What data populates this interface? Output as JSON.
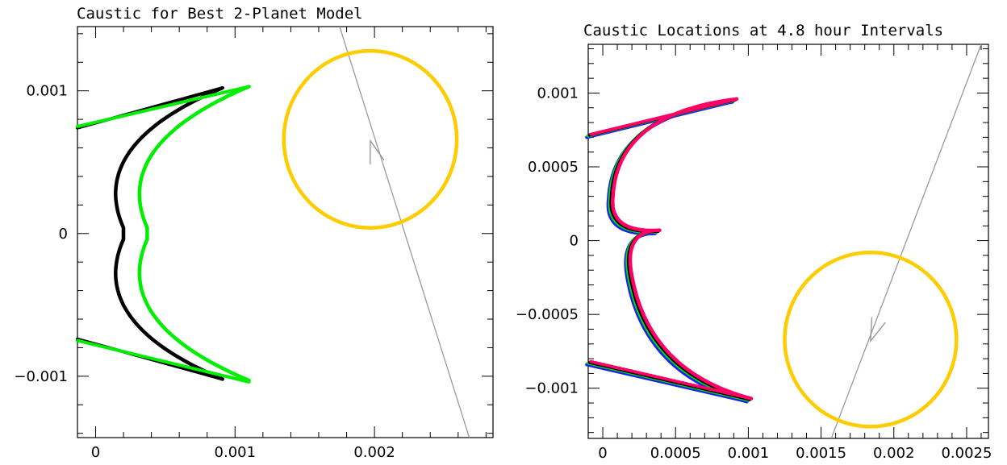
{
  "chart_data": [
    {
      "type": "line",
      "title": "Caustic for Best 2-Planet Model",
      "xlabel": "",
      "ylabel": "",
      "xlim": [
        -0.00013,
        0.00285
      ],
      "ylim": [
        -0.00143,
        0.00145
      ],
      "x_ticks": [
        0,
        0.001,
        0.002
      ],
      "x_tick_labels": [
        "0",
        "0.001",
        "0.002"
      ],
      "y_ticks": [
        -0.001,
        0,
        0.001
      ],
      "y_tick_labels": [
        "−0.001",
        "0",
        "0.001"
      ],
      "grid": false,
      "colors": {
        "caustic_black": "#000000",
        "caustic_green": "#00ee00",
        "source": "#ffcc00",
        "trajectory": "#999999"
      },
      "series": [
        {
          "color": "#000000",
          "cusps": {
            "top": [
              0.00091,
              0.00102
            ],
            "bottom": [
              0.00091,
              -0.00102
            ],
            "nub": [
              0.0002,
              0.0
            ],
            "left_top": [
              -0.00013,
              0.00074
            ],
            "left_bottom": [
              -0.00013,
              -0.00074
            ]
          },
          "arc_leftmost_x": 8e-05
        },
        {
          "color": "#00ee00",
          "cusps": {
            "top": [
              0.0011,
              0.00103
            ],
            "bottom": [
              0.0011,
              -0.00104
            ],
            "nub": [
              0.00037,
              0.0
            ],
            "left_top": [
              -0.00013,
              0.00075
            ],
            "left_bottom": [
              -0.00013,
              -0.00075
            ]
          },
          "arc_leftmost_x": 0.00025
        }
      ],
      "source_circle": {
        "cx": 0.00197,
        "cy": 0.00066,
        "r": 0.00062
      },
      "trajectory": {
        "from": [
          0.00175,
          0.00145
        ],
        "to": [
          0.00268,
          -0.00143
        ],
        "arrow_at": [
          0.00197,
          0.00065
        ],
        "arrow_direction": "up"
      }
    },
    {
      "type": "line",
      "title": "Caustic Locations at 4.8 hour Intervals",
      "xlabel": "",
      "ylabel": "",
      "xlim": [
        -0.0001,
        0.00265
      ],
      "ylim": [
        -0.00134,
        0.00133
      ],
      "x_ticks": [
        0,
        0.0005,
        0.001,
        0.0015,
        0.002,
        0.0025
      ],
      "x_tick_labels": [
        "0",
        "0.0005",
        "0.001",
        "0.0015",
        "0.002",
        "0.0025"
      ],
      "y_ticks": [
        -0.001,
        -0.0005,
        0,
        0.0005,
        0.001
      ],
      "y_tick_labels": [
        "−0.001",
        "−0.0005",
        "0",
        "0.0005",
        "0.001"
      ],
      "grid": false,
      "colors": {
        "blue": "#1a1aff",
        "green": "#00dd00",
        "black": "#000000",
        "red": "#ff0066",
        "source": "#ffcc00",
        "trajectory": "#999999"
      },
      "series": [
        {
          "color": "#1a1aff",
          "shift": [
            -1e-05,
            -1e-05
          ]
        },
        {
          "color": "#00dd00",
          "shift": [
            0.0,
            0.0
          ]
        },
        {
          "color": "#000000",
          "shift": [
            1e-05,
            5e-06
          ]
        },
        {
          "color": "#ff0066",
          "shift": [
            2e-05,
            1e-05
          ]
        }
      ],
      "caustic_shape": {
        "top": [
          0.0009,
          0.00095
        ],
        "upper_left_end": [
          -0.0001,
          0.00071
        ],
        "upper_arc_leftmost": [
          5e-05,
          0.00029
        ],
        "nub": [
          0.00037,
          6e-05
        ],
        "waist": [
          0.00018,
          -0.00025
        ],
        "bottom": [
          0.001,
          -0.00108
        ],
        "lower_left_end": [
          -0.0001,
          -0.00083
        ]
      },
      "source_circle": {
        "cx": 0.00184,
        "cy": -0.00067,
        "r": 0.00059
      },
      "trajectory": {
        "from": [
          0.0026,
          0.00133
        ],
        "to": [
          0.00157,
          -0.00134
        ],
        "arrow_at": [
          0.00184,
          -0.00068
        ],
        "arrow_direction": "down"
      }
    }
  ]
}
